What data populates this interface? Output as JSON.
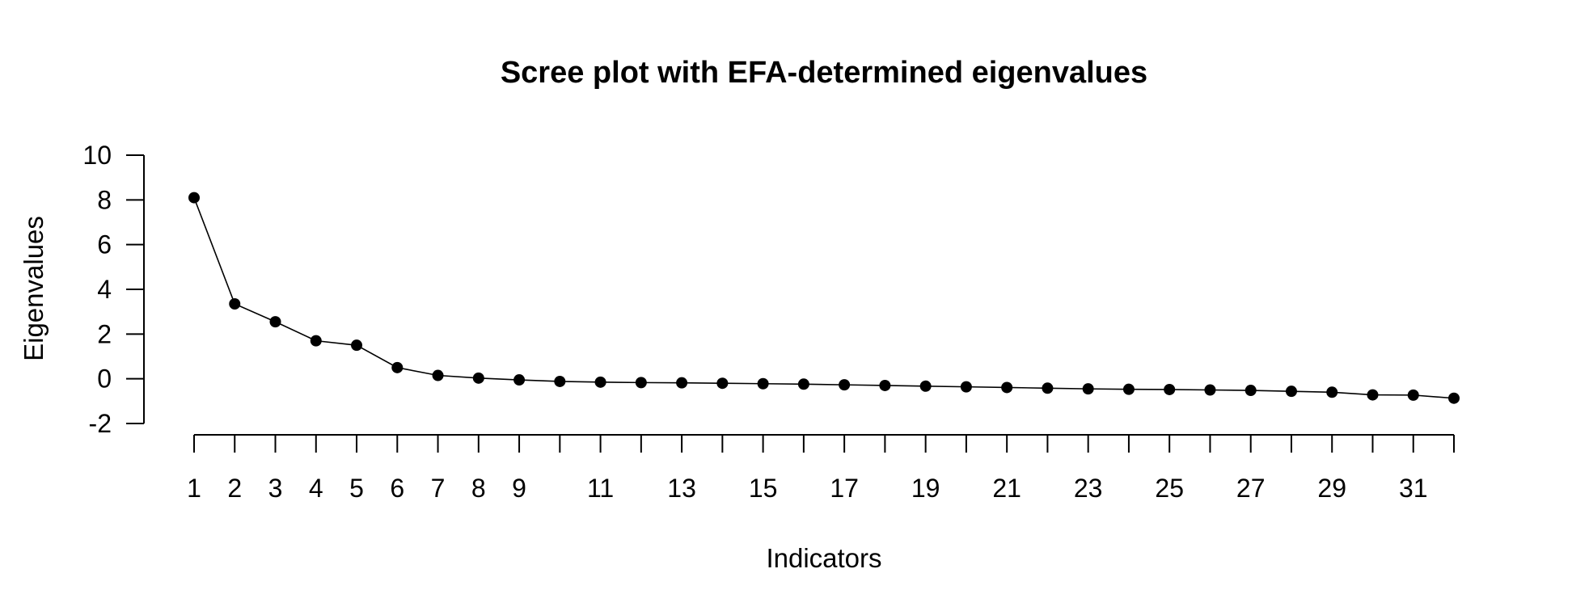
{
  "chart_data": {
    "type": "line",
    "title": "Scree plot with EFA-determined eigenvalues",
    "xlabel": "Indicators",
    "ylabel": "Eigenvalues",
    "xlim": [
      1,
      32
    ],
    "ylim": [
      -2,
      10
    ],
    "y_ticks": [
      -2,
      0,
      2,
      4,
      6,
      8,
      10
    ],
    "x_ticks": [
      1,
      2,
      3,
      4,
      5,
      6,
      7,
      8,
      9,
      10,
      11,
      12,
      13,
      14,
      15,
      16,
      17,
      18,
      19,
      20,
      21,
      22,
      23,
      24,
      25,
      26,
      27,
      28,
      29,
      30,
      31,
      32
    ],
    "x_tick_labels": [
      1,
      2,
      3,
      4,
      5,
      6,
      7,
      8,
      9,
      11,
      13,
      15,
      17,
      19,
      21,
      23,
      25,
      27,
      29,
      31
    ],
    "grid": false,
    "legend": "none",
    "series": [
      {
        "x": [
          1,
          2,
          3,
          4,
          5,
          6,
          7,
          8,
          9,
          10,
          11,
          12,
          13,
          14,
          15,
          16,
          17,
          18,
          19,
          20,
          21,
          22,
          23,
          24,
          25,
          26,
          27,
          28,
          29,
          30,
          31,
          32
        ],
        "values": [
          8.1,
          3.35,
          2.55,
          1.7,
          1.5,
          0.5,
          0.15,
          0.03,
          -0.05,
          -0.12,
          -0.15,
          -0.17,
          -0.18,
          -0.2,
          -0.22,
          -0.24,
          -0.27,
          -0.3,
          -0.33,
          -0.36,
          -0.39,
          -0.42,
          -0.45,
          -0.47,
          -0.48,
          -0.5,
          -0.52,
          -0.56,
          -0.6,
          -0.72,
          -0.73,
          -0.87
        ]
      }
    ]
  }
}
